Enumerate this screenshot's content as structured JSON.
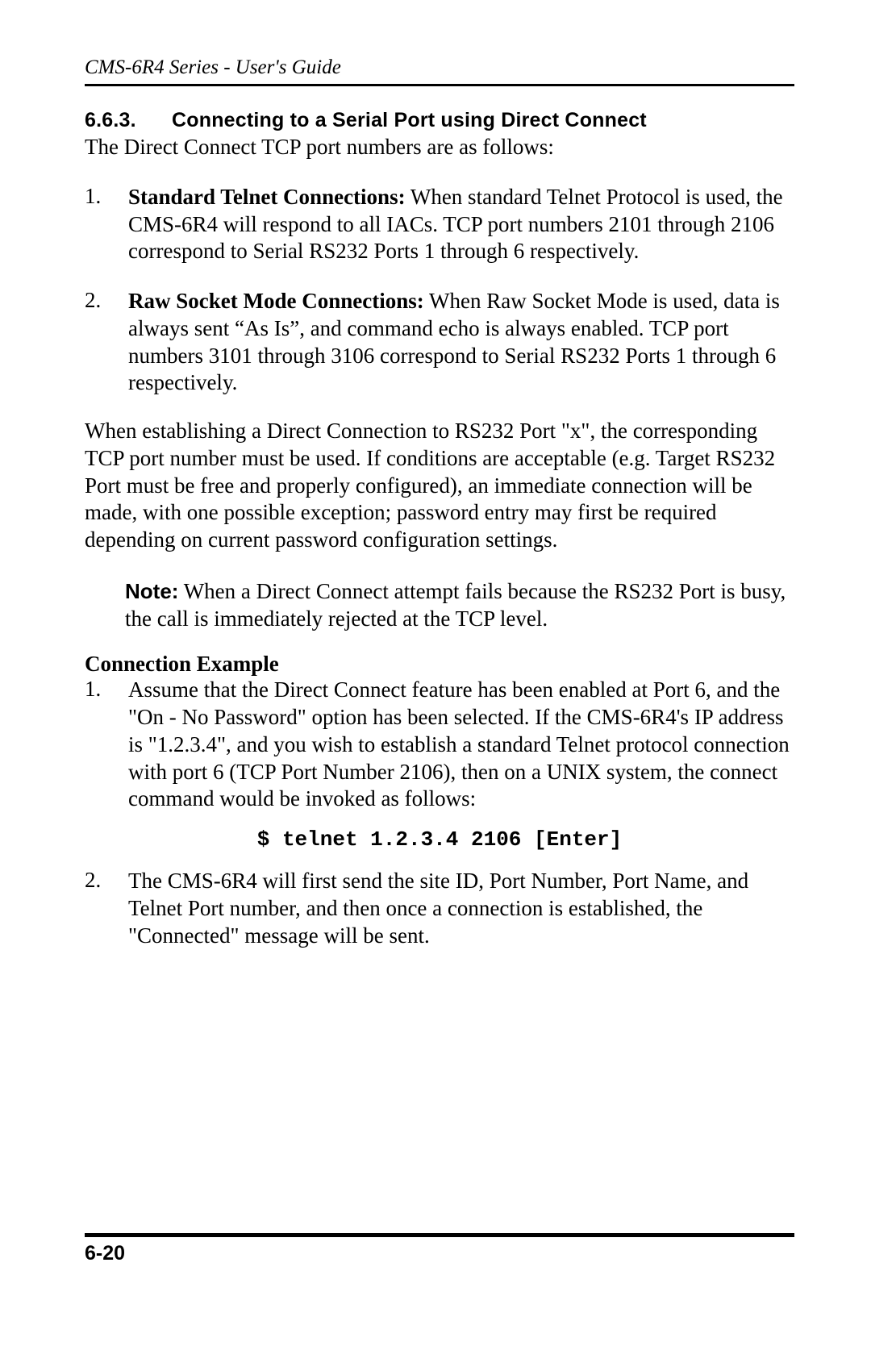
{
  "header": {
    "running_title": "CMS-6R4 Series - User's Guide"
  },
  "section": {
    "number": "6.6.3.",
    "title": "Connecting to a Serial Port using Direct Connect",
    "intro": "The Direct Connect TCP port numbers are as follows:"
  },
  "items": [
    {
      "marker": "1.",
      "bold_lead": "Standard Telnet Connections:",
      "text": "  When standard Telnet Protocol is used, the CMS-6R4 will respond to all IACs.  TCP port numbers 2101 through 2106 correspond to Serial RS232 Ports 1 through 6 respectively."
    },
    {
      "marker": "2.",
      "bold_lead": "Raw Socket Mode Connections:",
      "text": " When Raw Socket Mode is used, data is always sent “As Is”, and command echo is always enabled.  TCP port numbers 3101 through 3106 correspond to Serial RS232 Ports 1 through 6 respectively."
    }
  ],
  "paragraph": "When establishing a Direct Connection to RS232 Port \"x\", the corresponding TCP port number must be used. If conditions are acceptable (e.g. Target RS232 Port must be free and properly configured), an immediate connection will be made, with one possible exception; password entry may first be required depending on current password configuration settings.",
  "note": {
    "label": "Note:",
    "text": " When a Direct Connect attempt fails because the RS232 Port is busy, the call is immediately rejected at the TCP level."
  },
  "example": {
    "heading": "Connection Example",
    "items": [
      {
        "marker": "1.",
        "text": "Assume that the Direct Connect feature has been enabled at Port 6, and the \"On - No Password\" option has been selected.  If the CMS-6R4's IP address is \"1.2.3.4\", and you wish to establish a standard Telnet protocol connection with port 6 (TCP Port Number 2106), then on a UNIX system, the connect command would be invoked as follows:"
      },
      {
        "marker": "2.",
        "text": "The CMS-6R4 will first send the site ID, Port Number, Port Name, and Telnet Port number, and then once a connection is established, the \"Connected\" message will be sent."
      }
    ],
    "code": "$ telnet 1.2.3.4 2106 [Enter]"
  },
  "footer": {
    "page_number": "6-20"
  },
  "colors": {
    "text": "#000000",
    "background": "#ffffff",
    "rule": "#000000"
  },
  "fonts": {
    "body": "Times New Roman",
    "headings": "Verdana",
    "code": "Courier New"
  }
}
